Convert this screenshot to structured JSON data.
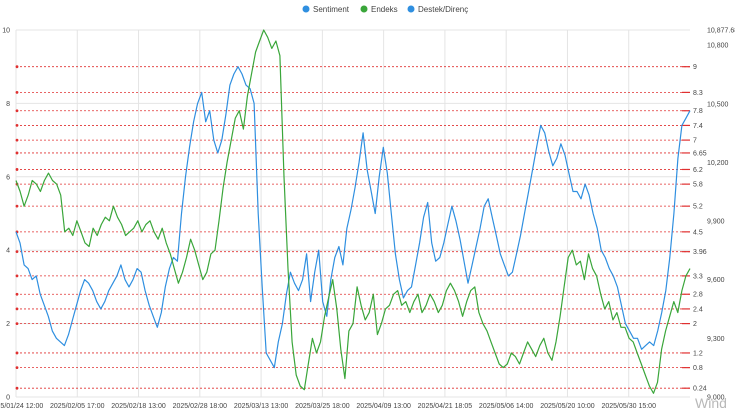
{
  "legend": [
    {
      "label": "Sentiment",
      "color": "#2f8fe0",
      "icon": "circle"
    },
    {
      "label": "Endeks",
      "color": "#3aa63a",
      "icon": "circle"
    },
    {
      "label": "Destek/Direnç",
      "color": "#2f8fe0",
      "icon": "circle"
    }
  ],
  "watermark": "Wind",
  "colors": {
    "sentiment": "#2f8fe0",
    "endeks": "#3aa63a",
    "reference": "#e03030",
    "grid": "#e4e4e4"
  },
  "chart_data": {
    "type": "line",
    "grid": true,
    "legend_position": "top-center",
    "left_axis": {
      "range": [
        0,
        10
      ],
      "ticks": [
        "0",
        "2",
        "4",
        "6",
        "8",
        "10"
      ]
    },
    "right_axis": {
      "range": [
        9000,
        10877.68
      ],
      "ticks": [
        "9,000",
        "9,300",
        "9,600",
        "9,900",
        "10,200",
        "10,500",
        "10,800",
        "10,877.68"
      ]
    },
    "x_tick_labels": [
      "2025/01/24 12:00",
      "2025/02/05 17:00",
      "2025/02/18 13:00",
      "2025/02/28 18:00",
      "2025/03/13 13:00",
      "2025/03/25 18:00",
      "2025/04/09 13:00",
      "2025/04/21 18:05",
      "2025/05/06 14:00",
      "2025/05/20 10:00",
      "2025/05/30 15:00"
    ],
    "reference_levels": [
      {
        "value": 9,
        "label": "9"
      },
      {
        "value": 8.3,
        "label": "8.3"
      },
      {
        "value": 7.8,
        "label": "7.8"
      },
      {
        "value": 7.4,
        "label": "7.4"
      },
      {
        "value": 7,
        "label": "7"
      },
      {
        "value": 6.65,
        "label": "6.65"
      },
      {
        "value": 6.2,
        "label": "6.2"
      },
      {
        "value": 5.8,
        "label": "5.8"
      },
      {
        "value": 5.2,
        "label": "5.2"
      },
      {
        "value": 4.5,
        "label": "4.5"
      },
      {
        "value": 3.96,
        "label": "3.96"
      },
      {
        "value": 3.3,
        "label": "3.3"
      },
      {
        "value": 2.8,
        "label": "2.8"
      },
      {
        "value": 2.4,
        "label": "2.4"
      },
      {
        "value": 2,
        "label": "2"
      },
      {
        "value": 1.2,
        "label": "1.2"
      },
      {
        "value": 0.8,
        "label": "0.8"
      },
      {
        "value": 0.24,
        "label": "0.24"
      }
    ],
    "series": [
      {
        "name": "Sentiment",
        "axis": "left",
        "color": "#2f8fe0",
        "values": [
          4.5,
          4.2,
          3.6,
          3.5,
          3.2,
          3.3,
          2.8,
          2.5,
          2.2,
          1.8,
          1.6,
          1.5,
          1.4,
          1.7,
          2.1,
          2.5,
          2.9,
          3.2,
          3.1,
          2.9,
          2.6,
          2.4,
          2.6,
          2.9,
          3.1,
          3.3,
          3.6,
          3.2,
          3.0,
          3.2,
          3.5,
          3.4,
          2.9,
          2.5,
          2.2,
          1.9,
          2.3,
          3.0,
          3.5,
          3.8,
          3.7,
          5.0,
          6.0,
          6.8,
          7.5,
          8.0,
          8.3,
          7.5,
          7.8,
          7.0,
          6.65,
          7.0,
          7.7,
          8.5,
          8.8,
          9.0,
          8.8,
          8.5,
          8.4,
          8.0,
          5.0,
          3.0,
          1.2,
          1.0,
          0.8,
          1.5,
          2.0,
          2.8,
          3.4,
          3.1,
          2.9,
          3.2,
          3.9,
          2.6,
          3.4,
          4.0,
          2.6,
          2.2,
          3.2,
          3.8,
          4.1,
          3.6,
          4.6,
          5.1,
          5.7,
          6.4,
          7.2,
          6.2,
          5.6,
          5.0,
          6.0,
          6.8,
          6.1,
          5.0,
          3.9,
          3.2,
          2.7,
          2.9,
          3.0,
          3.6,
          4.2,
          4.9,
          5.3,
          4.2,
          3.7,
          3.8,
          4.2,
          4.7,
          5.2,
          4.8,
          4.3,
          3.7,
          3.1,
          3.6,
          4.1,
          4.6,
          5.2,
          5.4,
          4.9,
          4.4,
          3.9,
          3.6,
          3.3,
          3.4,
          3.9,
          4.4,
          5.0,
          5.6,
          6.2,
          6.8,
          7.4,
          7.2,
          6.7,
          6.3,
          6.5,
          6.9,
          6.6,
          6.1,
          5.6,
          5.6,
          5.4,
          5.8,
          5.5,
          5.0,
          4.6,
          4.0,
          3.8,
          3.5,
          3.3,
          3.0,
          2.5,
          2.0,
          1.8,
          1.6,
          1.6,
          1.3,
          1.4,
          1.5,
          1.4,
          1.8,
          2.3,
          2.9,
          3.8,
          5.0,
          6.5,
          7.4,
          7.6,
          7.8
        ]
      },
      {
        "name": "Endeks",
        "axis": "left",
        "color": "#3aa63a",
        "values": [
          5.9,
          5.6,
          5.2,
          5.5,
          5.9,
          5.8,
          5.6,
          5.9,
          6.1,
          5.9,
          5.8,
          5.5,
          4.5,
          4.6,
          4.4,
          4.8,
          4.5,
          4.2,
          4.1,
          4.6,
          4.4,
          4.7,
          4.9,
          4.8,
          5.2,
          4.9,
          4.7,
          4.4,
          4.5,
          4.6,
          4.8,
          4.5,
          4.7,
          4.8,
          4.5,
          4.3,
          4.6,
          4.2,
          3.9,
          3.5,
          3.1,
          3.4,
          3.8,
          4.3,
          4.0,
          3.6,
          3.2,
          3.4,
          3.9,
          4.0,
          4.8,
          5.7,
          6.4,
          7.0,
          7.6,
          7.8,
          7.3,
          8.2,
          8.8,
          9.4,
          9.7,
          10.0,
          9.8,
          9.5,
          9.7,
          9.3,
          6.0,
          3.5,
          1.5,
          0.6,
          0.3,
          0.2,
          0.9,
          1.6,
          1.2,
          1.5,
          2.2,
          2.7,
          3.2,
          2.4,
          1.3,
          0.5,
          1.8,
          2.0,
          3.0,
          2.5,
          2.1,
          2.3,
          2.8,
          1.7,
          2.0,
          2.4,
          2.5,
          2.8,
          2.9,
          2.5,
          2.6,
          2.3,
          2.6,
          2.8,
          2.3,
          2.5,
          2.8,
          2.6,
          2.3,
          2.5,
          2.9,
          3.1,
          2.9,
          2.6,
          2.2,
          2.6,
          2.9,
          3.0,
          2.3,
          2.0,
          1.8,
          1.5,
          1.2,
          0.9,
          0.8,
          0.9,
          1.2,
          1.1,
          0.9,
          1.2,
          1.5,
          1.3,
          1.1,
          1.4,
          1.6,
          1.2,
          1.0,
          1.5,
          2.2,
          3.0,
          3.8,
          4.0,
          3.6,
          3.7,
          3.2,
          3.9,
          3.5,
          3.3,
          2.8,
          2.4,
          2.6,
          2.1,
          2.3,
          1.9,
          1.9,
          1.6,
          1.5,
          1.2,
          0.9,
          0.6,
          0.3,
          0.1,
          0.4,
          1.3,
          1.8,
          2.2,
          2.6,
          2.3,
          2.9,
          3.3,
          3.5
        ]
      }
    ]
  }
}
